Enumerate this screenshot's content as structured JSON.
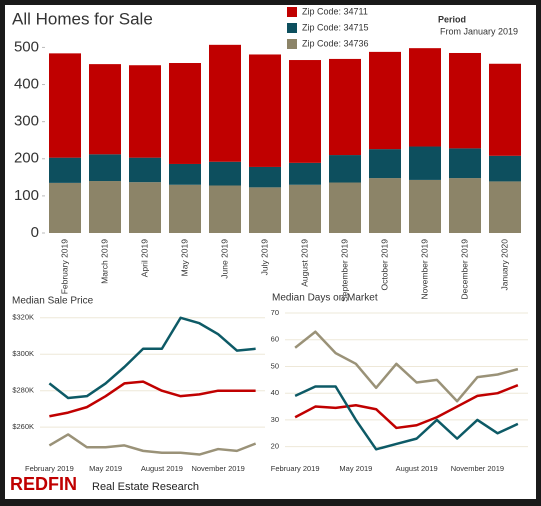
{
  "chart_data": [
    {
      "type": "bar",
      "stacked": true,
      "title": "All Homes for Sale",
      "annotations": [
        "Period",
        "From January 2019"
      ],
      "categories": [
        "February 2019",
        "March 2019",
        "April 2019",
        "May 2019",
        "June 2019",
        "July 2019",
        "August 2019",
        "September 2019",
        "October 2019",
        "November 2019",
        "December 2019",
        "January 2020"
      ],
      "series": [
        {
          "name": "Zip Code: 34736",
          "color": "#8c8468",
          "values": [
            135,
            140,
            137,
            130,
            128,
            123,
            130,
            136,
            148,
            143,
            148,
            139
          ]
        },
        {
          "name": "Zip Code: 34715",
          "color": "#0d4f5e",
          "values": [
            68,
            72,
            66,
            56,
            64,
            55,
            59,
            74,
            78,
            90,
            80,
            69
          ]
        },
        {
          "name": "Zip Code: 34711",
          "color": "#c00000",
          "values": [
            281,
            243,
            249,
            272,
            315,
            303,
            277,
            259,
            262,
            265,
            257,
            248
          ]
        }
      ],
      "ylim": [
        0,
        520
      ],
      "yticks": [
        0,
        100,
        200,
        300,
        400,
        500
      ],
      "grid": false
    },
    {
      "type": "line",
      "title": "Median Sale Price",
      "categories": [
        "February 2019",
        null,
        null,
        "May 2019",
        null,
        null,
        "August 2019",
        null,
        null,
        "November 2019",
        null,
        null
      ],
      "series": [
        {
          "color": "#0d5a66",
          "values": [
            284000,
            276000,
            277000,
            284000,
            293000,
            303000,
            303000,
            320000,
            317000,
            311000,
            302000,
            303000
          ]
        },
        {
          "color": "#c00000",
          "values": [
            266000,
            268000,
            271000,
            277000,
            284000,
            285000,
            280000,
            277000,
            278000,
            280000,
            280000,
            280000
          ]
        },
        {
          "color": "#9a9278",
          "values": [
            250000,
            256000,
            249000,
            249000,
            250000,
            247000,
            246000,
            246000,
            245000,
            248000,
            247000,
            251000
          ]
        }
      ],
      "ylim": [
        242000,
        327000
      ],
      "yticks": [
        {
          "value": 260000,
          "label": "$260K"
        },
        {
          "value": 280000,
          "label": "$280K"
        },
        {
          "value": 300000,
          "label": "$300K"
        },
        {
          "value": 320000,
          "label": "$320K"
        }
      ],
      "grid": true
    },
    {
      "type": "line",
      "title": "Median Days on Market",
      "categories": [
        "February 2019",
        null,
        null,
        "May 2019",
        null,
        null,
        "August 2019",
        null,
        null,
        "November 2019",
        null,
        null
      ],
      "series": [
        {
          "color": "#9a9278",
          "values": [
            57,
            63,
            55,
            51,
            42,
            51,
            44,
            45,
            37,
            46,
            47,
            49
          ]
        },
        {
          "color": "#c00000",
          "values": [
            31,
            35,
            34.5,
            35.5,
            34,
            27,
            28,
            31,
            35,
            39,
            40,
            43
          ]
        },
        {
          "color": "#0d5a66",
          "values": [
            39,
            42.5,
            42.5,
            30,
            19,
            21,
            23,
            30,
            23,
            30,
            25,
            28.5
          ]
        }
      ],
      "ylim": [
        15,
        73
      ],
      "yticks": [
        20,
        30,
        40,
        50,
        60,
        70
      ],
      "grid": true
    }
  ],
  "footer": {
    "brand": "REDFIN",
    "text": "Real Estate Research"
  }
}
